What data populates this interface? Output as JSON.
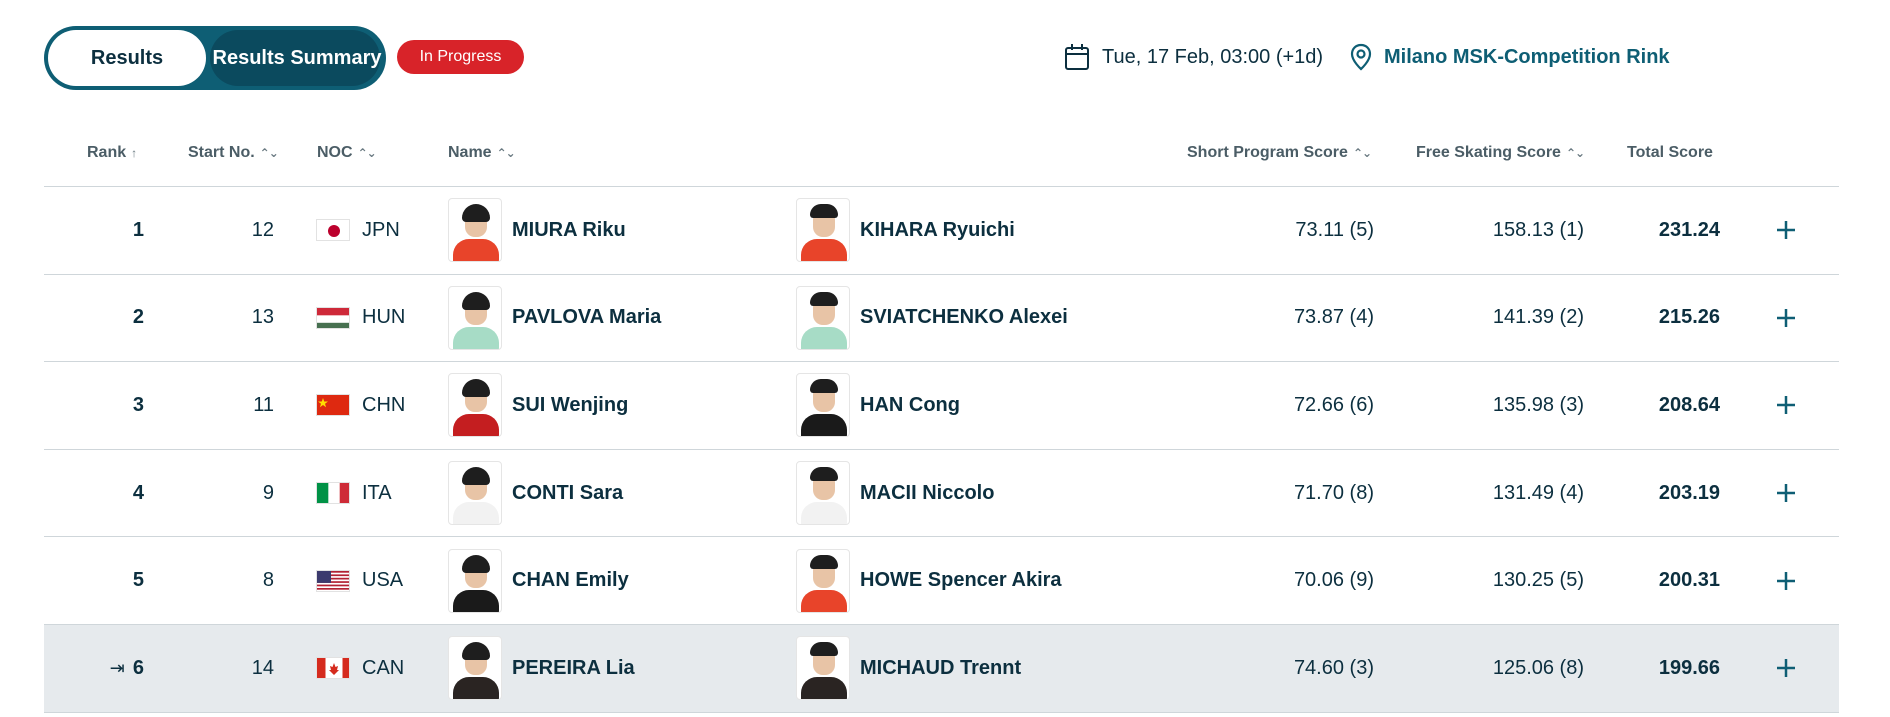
{
  "tabs": {
    "results": "Results",
    "summary": "Results Summary"
  },
  "status": "In Progress",
  "datetime": "Tue, 17 Feb, 03:00 (+1d)",
  "venue": "Milano MSK-Competition Rink",
  "colors": {
    "primary": "#0e5e74",
    "status": "#d82329",
    "highlight_row": "#e6eaed"
  },
  "columns": {
    "rank": "Rank",
    "start_no": "Start No.",
    "noc": "NOC",
    "name": "Name",
    "short_program": "Short Program Score",
    "free_skating": "Free Skating Score",
    "total": "Total Score"
  },
  "rows": [
    {
      "rank": "1",
      "start_no": "12",
      "noc": "JPN",
      "athlete1": "MIURA Riku",
      "athlete2": "KIHARA Ryuichi",
      "sp": "73.11 (5)",
      "fs": "158.13 (1)",
      "total": "231.24"
    },
    {
      "rank": "2",
      "start_no": "13",
      "noc": "HUN",
      "athlete1": "PAVLOVA Maria",
      "athlete2": "SVIATCHENKO Alexei",
      "sp": "73.87 (4)",
      "fs": "141.39 (2)",
      "total": "215.26"
    },
    {
      "rank": "3",
      "start_no": "11",
      "noc": "CHN",
      "athlete1": "SUI Wenjing",
      "athlete2": "HAN Cong",
      "sp": "72.66 (6)",
      "fs": "135.98 (3)",
      "total": "208.64"
    },
    {
      "rank": "4",
      "start_no": "9",
      "noc": "ITA",
      "athlete1": "CONTI Sara",
      "athlete2": "MACII Niccolo",
      "sp": "71.70 (8)",
      "fs": "131.49 (4)",
      "total": "203.19"
    },
    {
      "rank": "5",
      "start_no": "8",
      "noc": "USA",
      "athlete1": "CHAN Emily",
      "athlete2": "HOWE Spencer Akira",
      "sp": "70.06 (9)",
      "fs": "130.25 (5)",
      "total": "200.31"
    },
    {
      "rank": "6",
      "start_no": "14",
      "noc": "CAN",
      "athlete1": "PEREIRA Lia",
      "athlete2": "MICHAUD Trennt",
      "sp": "74.60 (3)",
      "fs": "125.06 (8)",
      "total": "199.66"
    }
  ]
}
